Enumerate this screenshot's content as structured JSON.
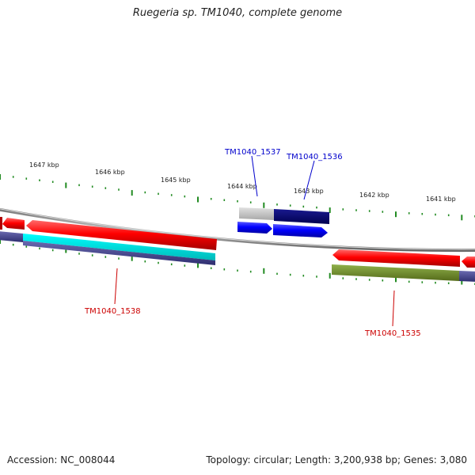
{
  "title": "Ruegeria sp. TM1040, complete genome",
  "footer": {
    "accession": "Accession: NC_008044",
    "summary": "Topology: circular; Length: 3,200,938 bp; Genes: 3,080"
  },
  "ruler": {
    "ticks": [
      "1647 kbp",
      "1646 kbp",
      "1645 kbp",
      "1644 kbp",
      "1643 kbp",
      "1642 kbp",
      "1641 kbp"
    ]
  },
  "genes": [
    {
      "id": "TM1040_1537",
      "label": "TM1040_1537",
      "color": "#0000cc"
    },
    {
      "id": "TM1040_1536",
      "label": "TM1040_1536",
      "color": "#0000cc"
    },
    {
      "id": "TM1040_1538",
      "label": "TM1040_1538",
      "color": "#cc0000"
    },
    {
      "id": "TM1040_1535",
      "label": "TM1040_1535",
      "color": "#cc0000"
    }
  ],
  "colors": {
    "backbone": "#888888",
    "forward_gene": "#0000ff",
    "reverse_gene": "#ff0000",
    "tick": "#228b22",
    "cyan_track": "#00e5e5",
    "navy_track": "#00006e",
    "olive_track": "#6b8e23",
    "purple_track": "#4b4b8f",
    "grey_track": "#c8c8c8"
  }
}
